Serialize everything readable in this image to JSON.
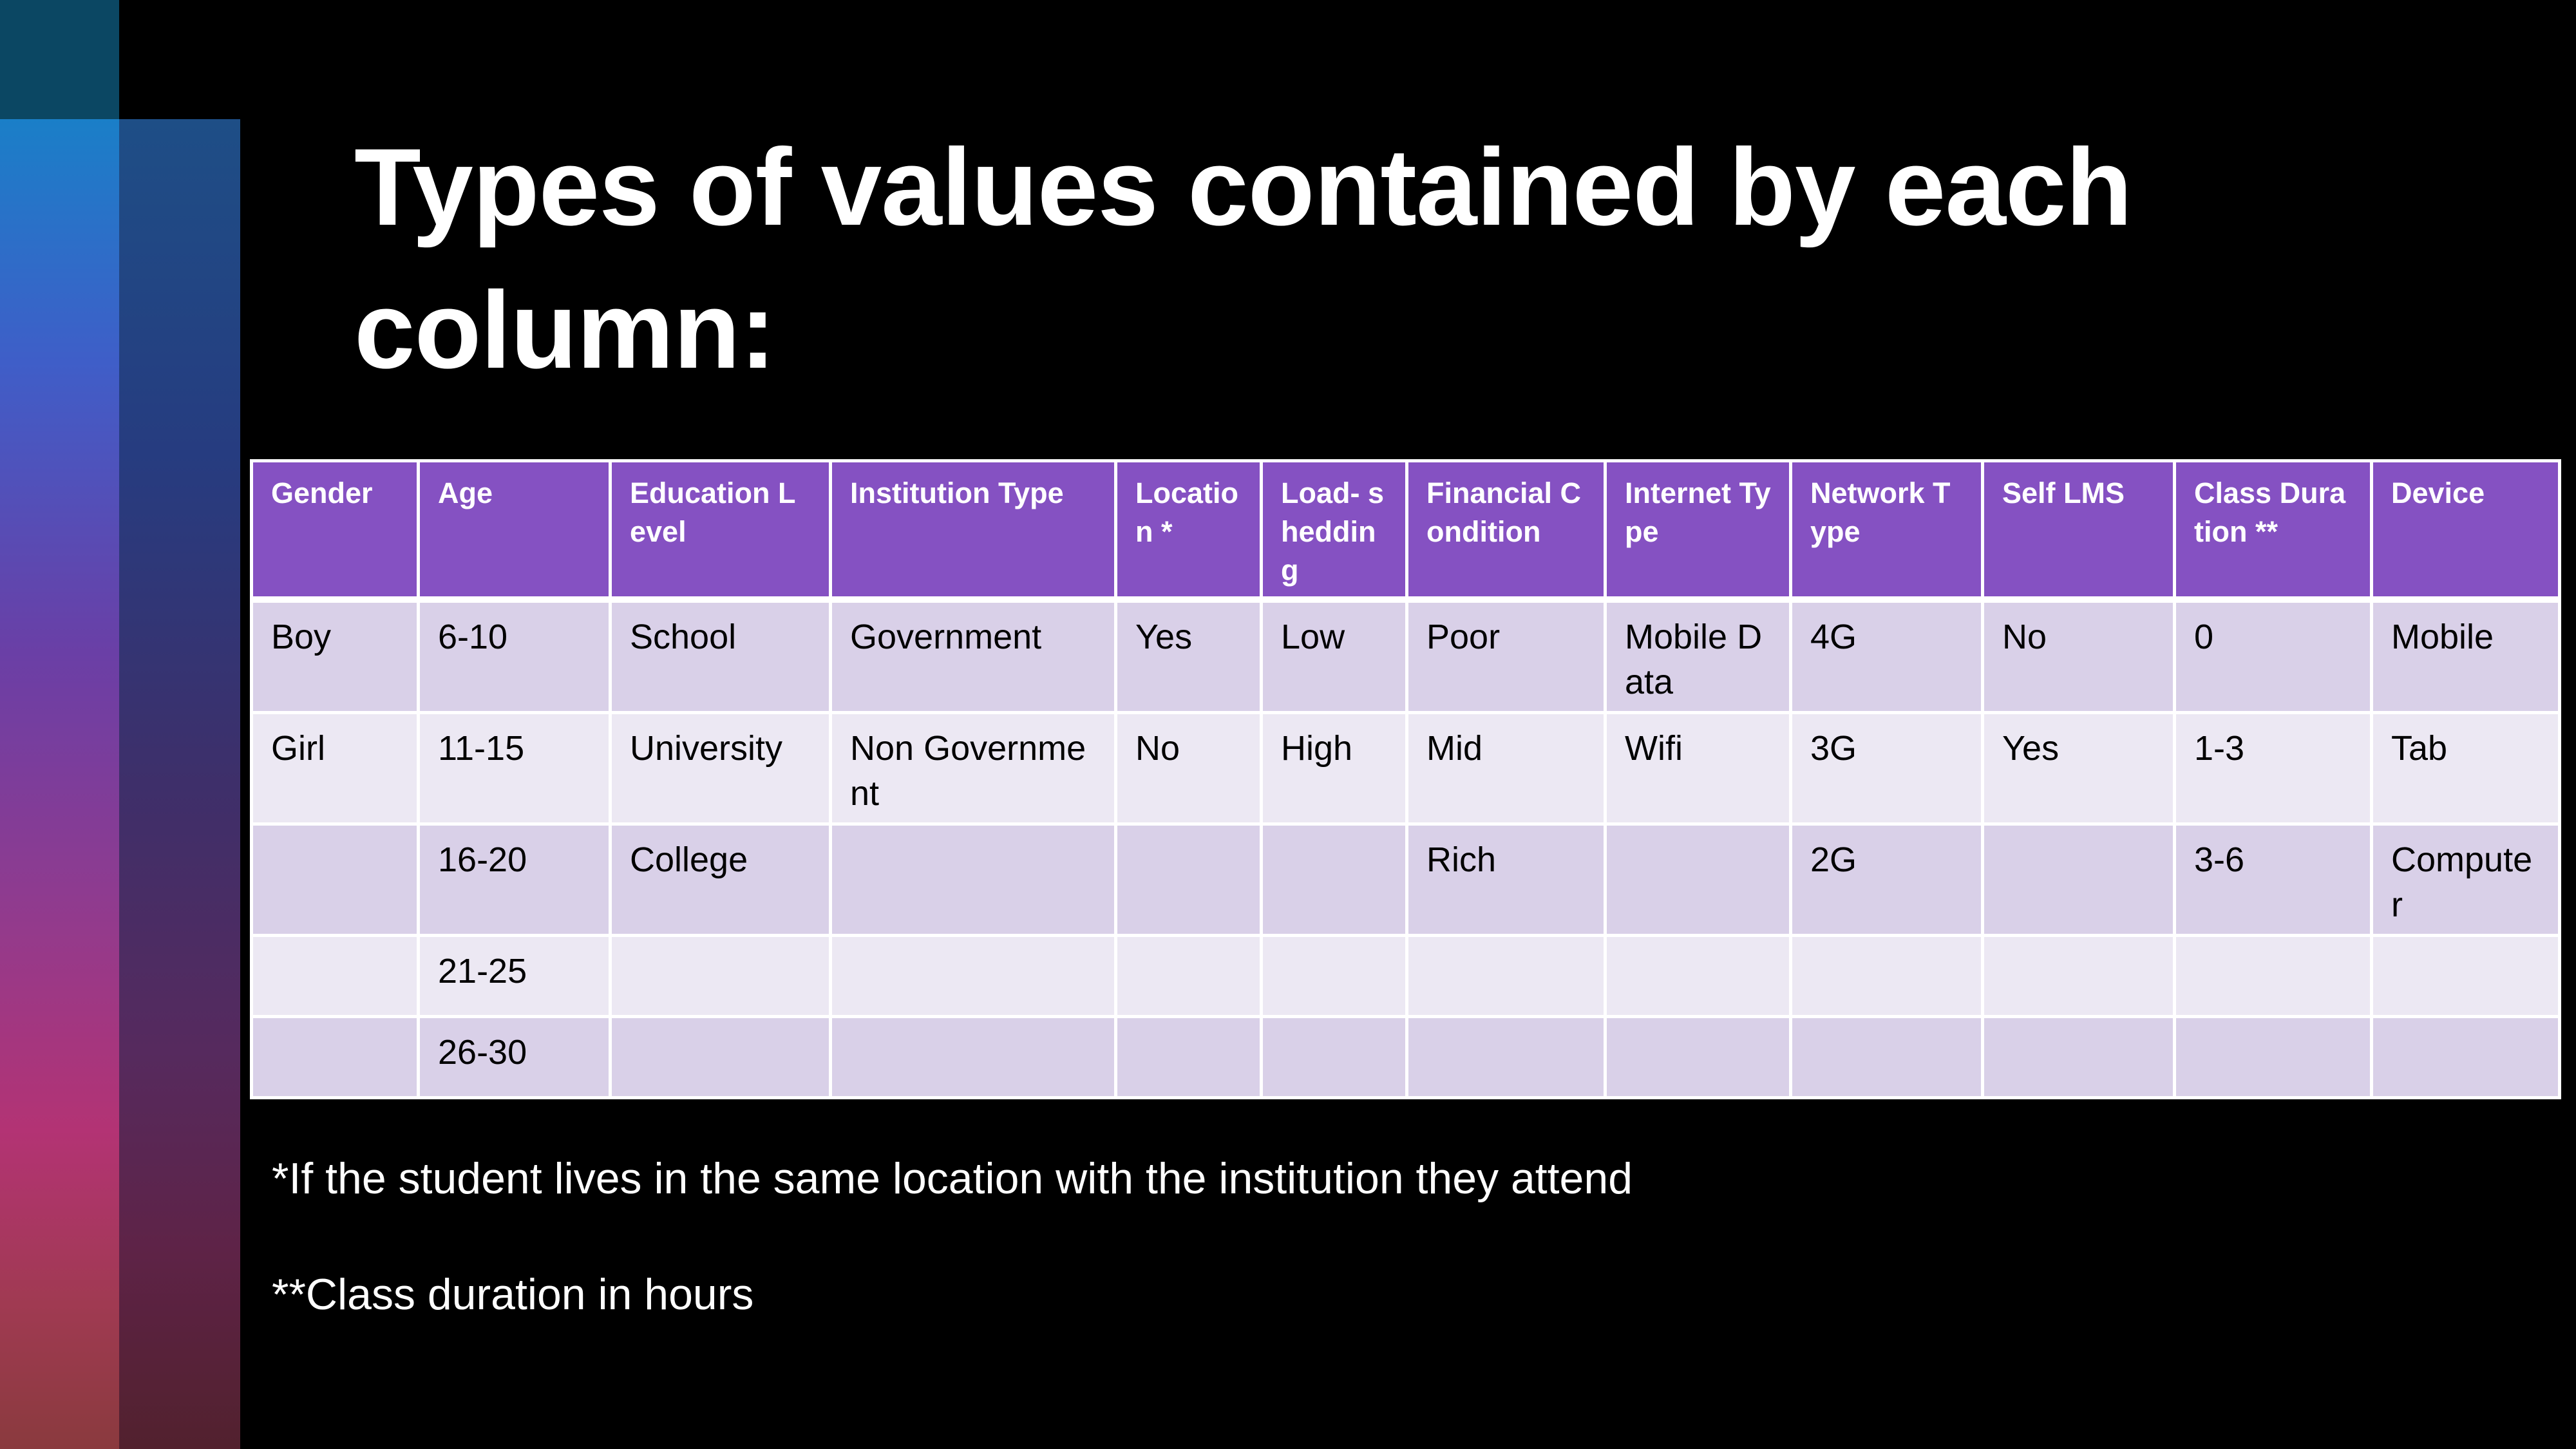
{
  "slide": {
    "title": "Types of values contained by each column:",
    "footnotes": [
      "*If the student lives in the same location with the institution they attend",
      "**Class duration in hours"
    ]
  },
  "table": {
    "headers": [
      "Gender",
      "Age",
      "Education Level",
      "Institution Type",
      "Locatio n *",
      "Load- sheddin g",
      "Financial Condition",
      "Internet Type",
      "Network Type",
      "Self LMS",
      "Class Duration **",
      "Device"
    ],
    "rows": [
      [
        "Boy",
        "6-10",
        "School",
        "Government",
        "Yes",
        "Low",
        "Poor",
        "Mobile Data",
        "4G",
        "No",
        "0",
        "Mobile"
      ],
      [
        "Girl",
        "11-15",
        "University",
        "Non Government",
        "No",
        "High",
        "Mid",
        "Wifi",
        "3G",
        "Yes",
        "1-3",
        "Tab"
      ],
      [
        "",
        "16-20",
        "College",
        "",
        "",
        "",
        "Rich",
        "",
        "2G",
        "",
        "3-6",
        "Compute r"
      ],
      [
        "",
        "21-25",
        "",
        "",
        "",
        "",
        "",
        "",
        "",
        "",
        "",
        ""
      ],
      [
        "",
        "26-30",
        "",
        "",
        "",
        "",
        "",
        "",
        "",
        "",
        "",
        ""
      ]
    ]
  },
  "colors": {
    "header_bg": "#8551c2",
    "row_odd_bg": "#d9d0e8",
    "row_even_bg": "#ece8f3",
    "slide_bg": "#000000"
  }
}
